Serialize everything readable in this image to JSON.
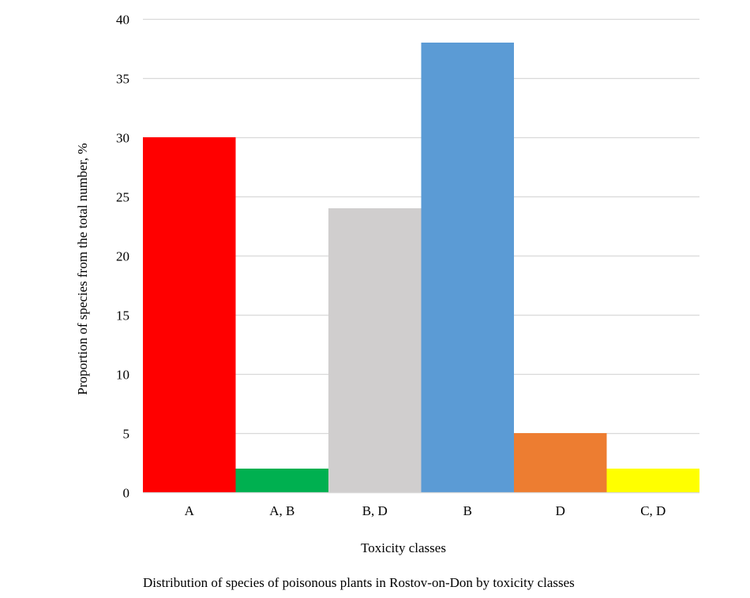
{
  "chart_data": {
    "type": "bar",
    "title": "",
    "xlabel": "Toxicity classes",
    "ylabel": "Proportion of species from the total number, %",
    "categories": [
      "A",
      "A, B",
      "B, D",
      "B",
      "D",
      "C, D"
    ],
    "values": [
      30,
      2,
      24,
      38,
      5,
      2
    ],
    "bar_colors": [
      "#ff0000",
      "#00b050",
      "#d0cece",
      "#5b9bd5",
      "#ed7d31",
      "#ffff00"
    ],
    "ylim": [
      0,
      40
    ],
    "yticks": [
      0,
      5,
      10,
      15,
      20,
      25,
      30,
      35,
      40
    ],
    "grid": true,
    "grid_color": "#d9d9d9",
    "legend": "none"
  },
  "caption": "Distribution of species of poisonous plants in Rostov-on-Don by toxicity classes"
}
